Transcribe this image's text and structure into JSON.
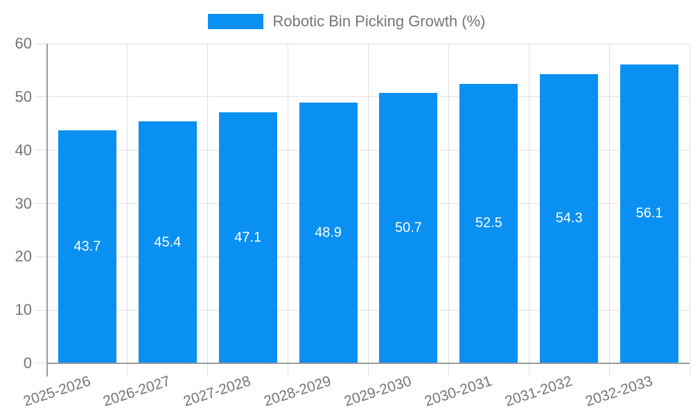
{
  "chart_data": {
    "type": "bar",
    "title": "Robotic Bin Picking Growth (%)",
    "legend": {
      "entries": [
        "Robotic Bin Picking Growth (%)"
      ],
      "position": "top-center"
    },
    "categories": [
      "2025-2026",
      "2026-2027",
      "2027-2028",
      "2028-2029",
      "2029-2030",
      "2030-2031",
      "2031-2032",
      "2032-2033"
    ],
    "series": [
      {
        "name": "Robotic Bin Picking Growth (%)",
        "values": [
          43.7,
          45.4,
          47.1,
          48.9,
          50.7,
          52.5,
          54.3,
          56.1
        ]
      }
    ],
    "value_labels": [
      "43.7",
      "45.4",
      "47.1",
      "48.9",
      "50.7",
      "52.5",
      "54.3",
      "56.1"
    ],
    "xlabel": "",
    "ylabel": "",
    "ylim": [
      0,
      60
    ],
    "yticks": [
      0,
      10,
      20,
      30,
      40,
      50,
      60
    ],
    "grid": true,
    "colors": {
      "bar": "#0a90f2",
      "grid": "#e0e0e0",
      "axis": "#9a9a9a",
      "tick_label": "#757575",
      "value_label": "#ffffff",
      "legend_text": "#757575"
    }
  }
}
